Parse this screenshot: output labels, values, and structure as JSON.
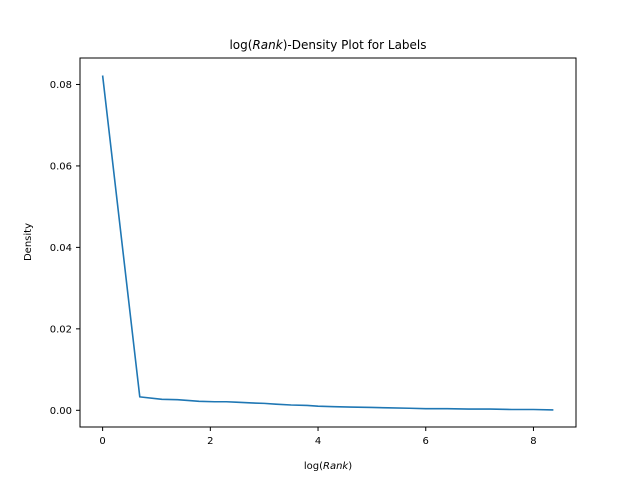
{
  "chart_data": {
    "type": "line",
    "title": {
      "prefix": "log(",
      "italic": "Rank",
      "suffix": ")-Density Plot for Labels"
    },
    "xlabel": {
      "prefix": "log(",
      "italic": "Rank",
      "suffix": ")"
    },
    "ylabel": "Density",
    "xlim": [
      -0.42,
      8.79
    ],
    "ylim": [
      -0.0041,
      0.0865
    ],
    "xticks": [
      0,
      2,
      4,
      6,
      8
    ],
    "xtick_labels": [
      "0",
      "2",
      "4",
      "6",
      "8"
    ],
    "yticks": [
      0.0,
      0.02,
      0.04,
      0.06,
      0.08
    ],
    "ytick_labels": [
      "0.00",
      "0.02",
      "0.04",
      "0.06",
      "0.08"
    ],
    "grid": false,
    "series": [
      {
        "color": "#1f77b4",
        "x": [
          0.0,
          0.69,
          1.1,
          1.39,
          1.61,
          1.79,
          2.08,
          2.3,
          2.48,
          2.77,
          3.0,
          3.22,
          3.5,
          3.8,
          4.0,
          4.3,
          4.6,
          5.0,
          5.3,
          5.7,
          6.0,
          6.4,
          6.8,
          7.2,
          7.6,
          8.0,
          8.37
        ],
        "y": [
          0.0822,
          0.0033,
          0.0027,
          0.0026,
          0.0024,
          0.0022,
          0.0021,
          0.0021,
          0.002,
          0.0018,
          0.0017,
          0.0015,
          0.0013,
          0.0012,
          0.001,
          0.0009,
          0.0008,
          0.0007,
          0.0006,
          0.0005,
          0.0004,
          0.0004,
          0.0003,
          0.0003,
          0.0002,
          0.0002,
          0.0001
        ]
      }
    ]
  }
}
